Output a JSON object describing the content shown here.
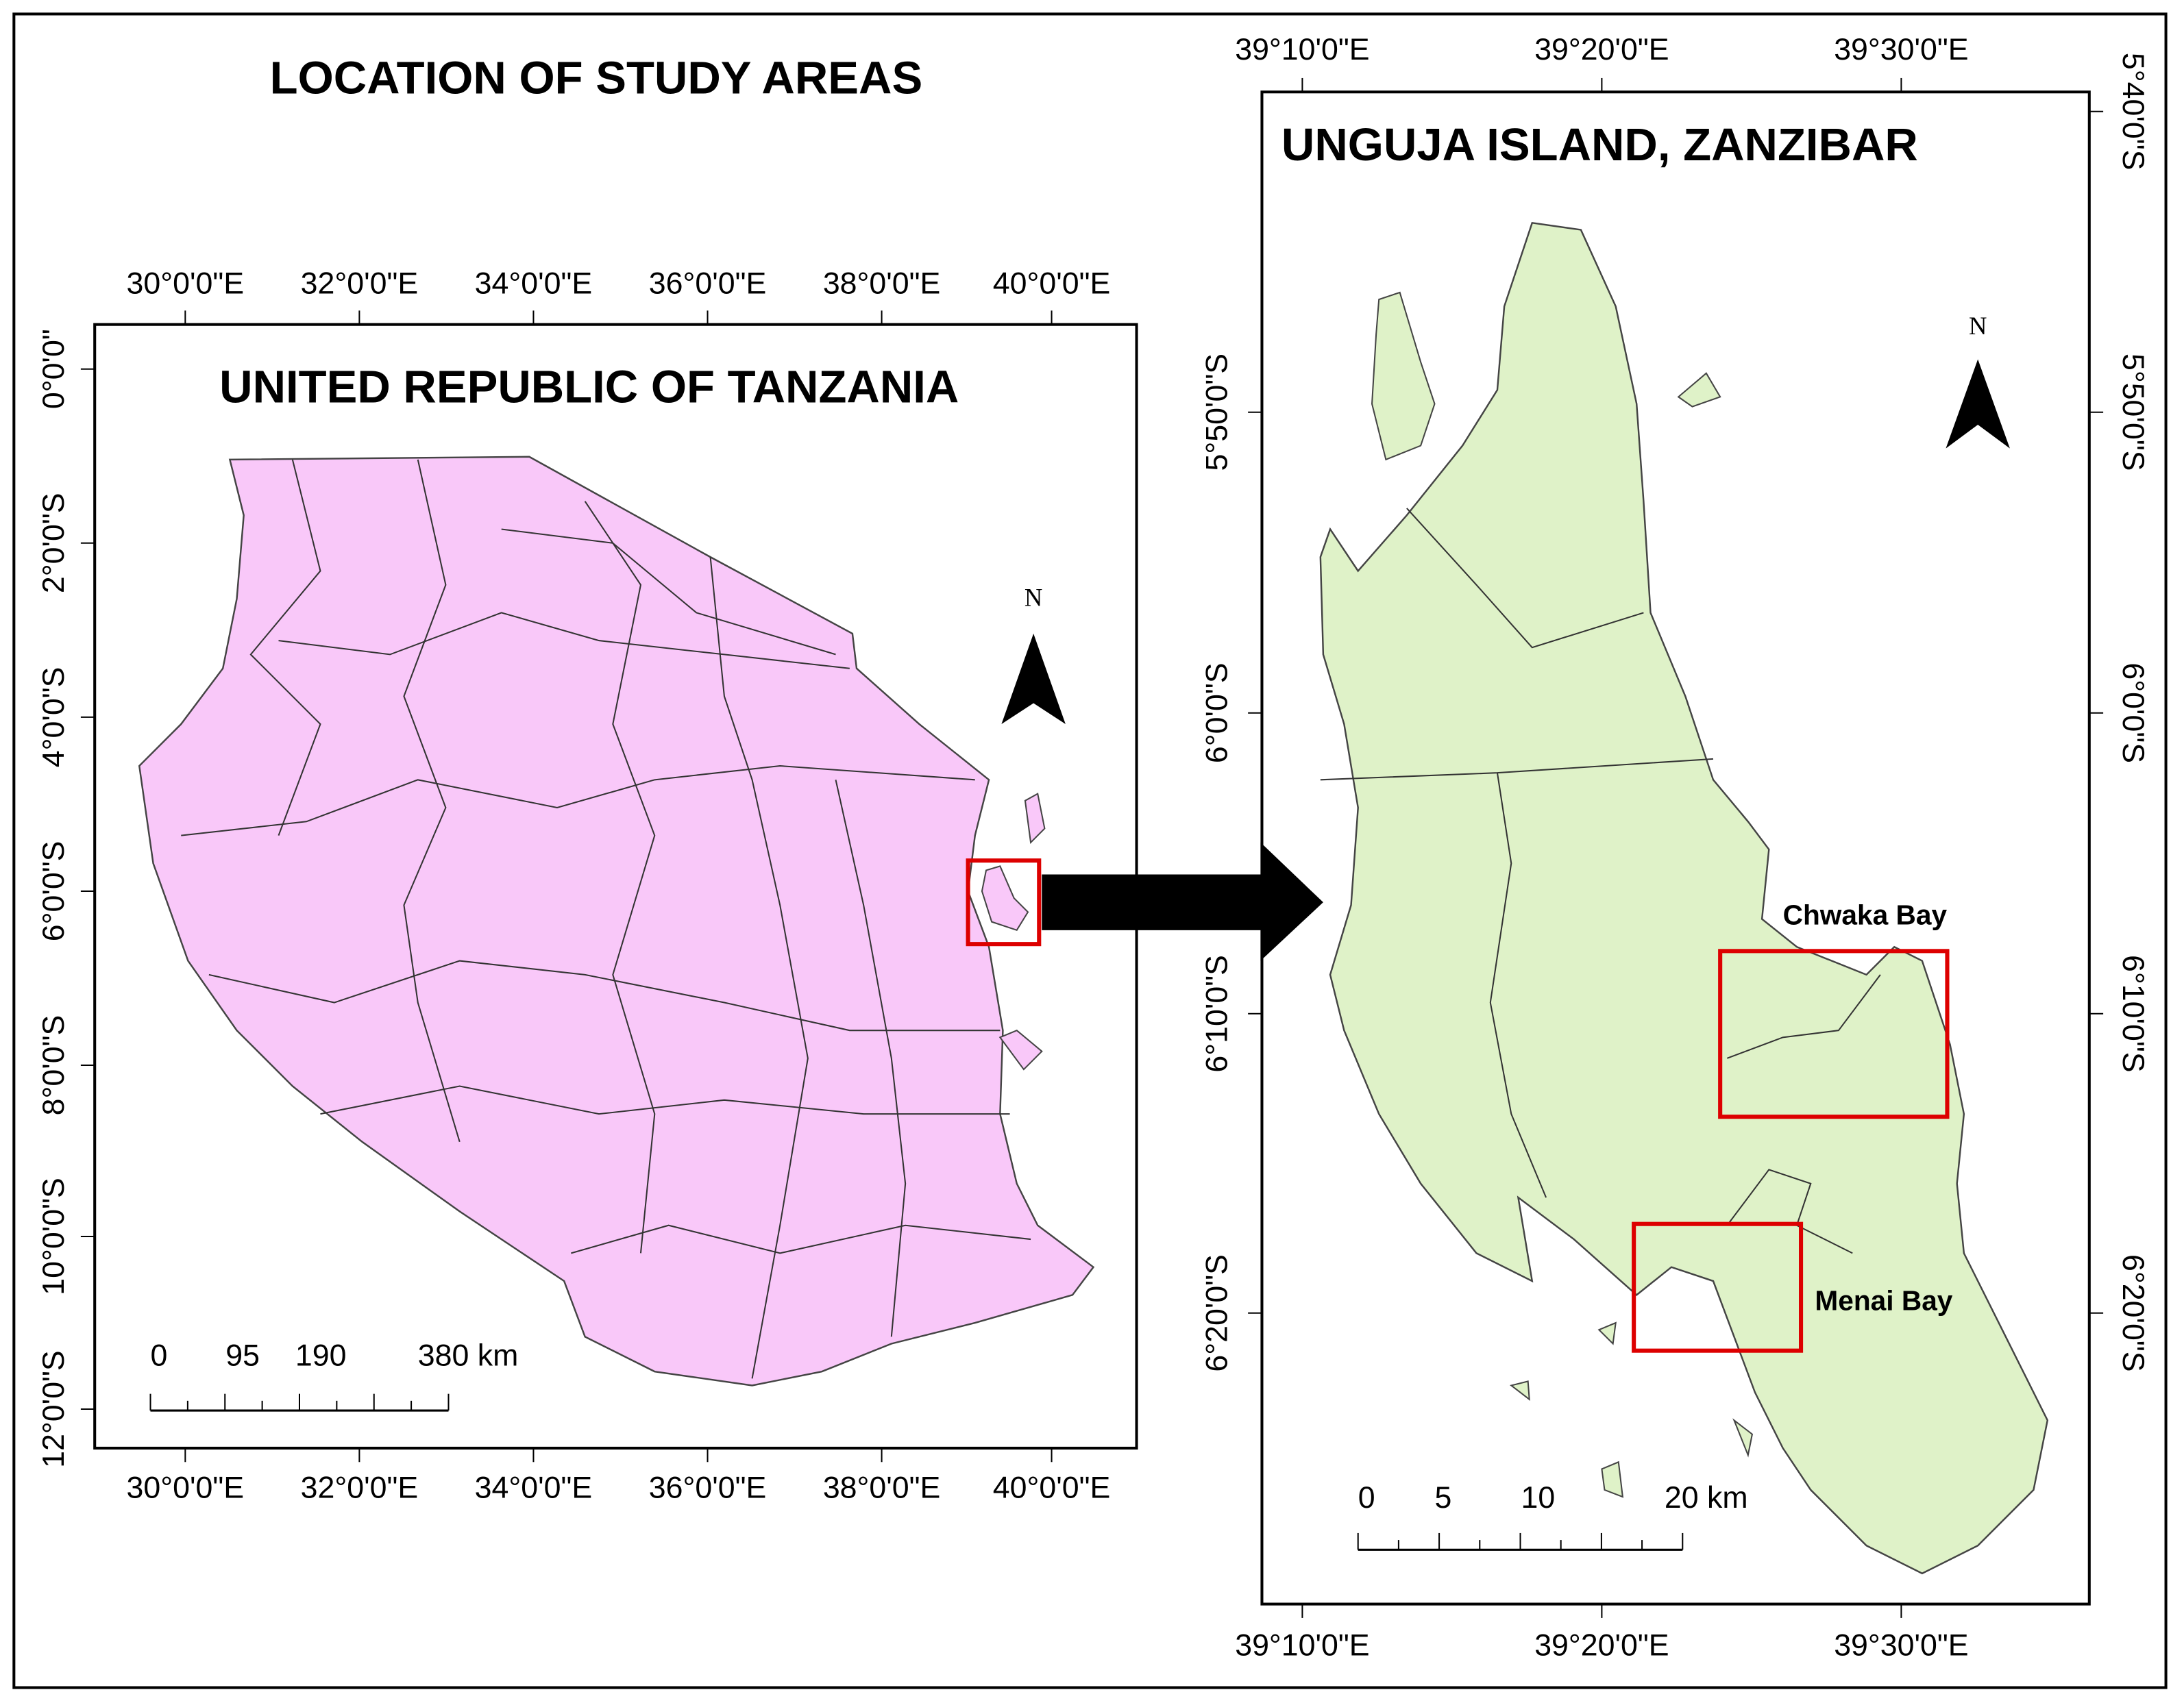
{
  "title": "LOCATION OF STUDY AREAS",
  "maps": [
    {
      "title": "UNITED REPUBLIC OF TANZANIA",
      "top_ticks": [
        "30°0'0\"E",
        "32°0'0\"E",
        "34°0'0\"E",
        "36°0'0\"E",
        "38°0'0\"E",
        "40°0'0\"E"
      ],
      "bottom_ticks": [
        "30°0'0\"E",
        "32°0'0\"E",
        "34°0'0\"E",
        "36°0'0\"E",
        "38°0'0\"E",
        "40°0'0\"E"
      ],
      "left_ticks": [
        "0°0'0\"",
        "2°0'0\"S",
        "4°0'0\"S",
        "6°0'0\"S",
        "8°0'0\"S",
        "10°0'0\"S",
        "12°0'0\"S"
      ],
      "north": "N",
      "scale_labels": [
        "0",
        "95",
        "190",
        "380 km"
      ]
    },
    {
      "title": "UNGUJA ISLAND, ZANZIBAR",
      "top_ticks": [
        "39°10'0\"E",
        "39°20'0\"E",
        "39°30'0\"E"
      ],
      "bottom_ticks": [
        "39°10'0\"E",
        "39°20'0\"E",
        "39°30'0\"E"
      ],
      "left_ticks": [
        "5°50'0\"S",
        "6°0'0\"S",
        "6°10'0\"S",
        "6°20'0\"S"
      ],
      "right_ticks": [
        "5°40'0\"S",
        "5°50'0\"S",
        "6°0'0\"S",
        "6°10'0\"S",
        "6°20'0\"S"
      ],
      "north": "N",
      "scale_labels": [
        "0",
        "5",
        "10",
        "20 km"
      ],
      "study_areas": [
        "Chwaka Bay",
        "Menai Bay"
      ]
    }
  ]
}
